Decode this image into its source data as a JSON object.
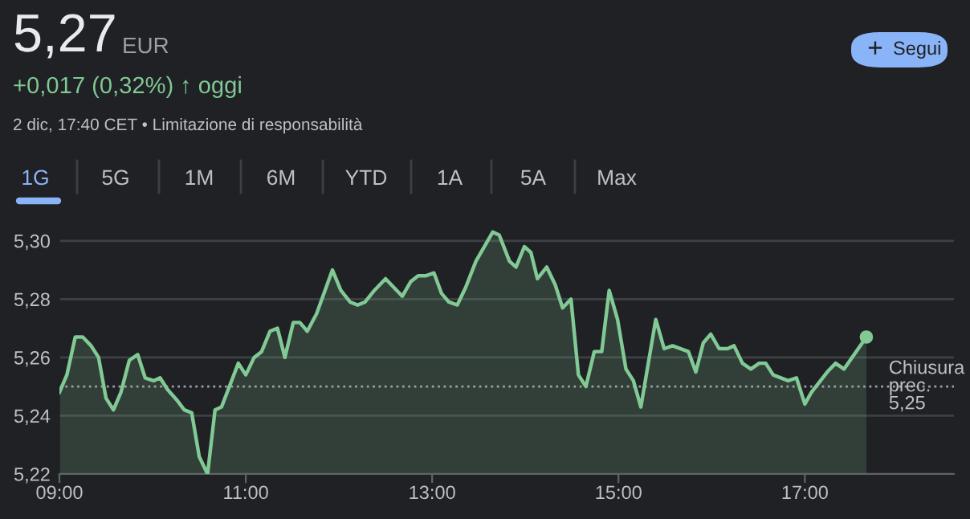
{
  "chart_data": {
    "type": "area",
    "title": "5,27",
    "annotations": [
      "EUR",
      "+0,017 (0,32%)",
      "↑ oggi",
      "2 dic, 17:40 CET • Limitazione di responsabilità",
      "1G",
      "5G",
      "1M",
      "6M",
      "YTD",
      "1A",
      "5A",
      "Max",
      "+",
      "Segui"
    ],
    "series": [
      {
        "color": "#81c995",
        "x": [
          9.0,
          9.08,
          9.17,
          9.25,
          9.34,
          9.42,
          9.5,
          9.58,
          9.66,
          9.75,
          9.84,
          9.92,
          10.01,
          10.08,
          10.16,
          10.27,
          10.34,
          10.42,
          10.5,
          10.59,
          10.67,
          10.74,
          10.92,
          11.0,
          11.09,
          11.17,
          11.26,
          11.34,
          11.42,
          11.51,
          11.58,
          11.66,
          11.76,
          11.93,
          12.02,
          12.12,
          12.2,
          12.28,
          12.38,
          12.5,
          12.68,
          12.77,
          12.85,
          12.93,
          13.02,
          13.1,
          13.18,
          13.27,
          13.36,
          13.47,
          13.65,
          13.72,
          13.83,
          13.9,
          13.99,
          14.06,
          14.13,
          14.23,
          14.32,
          14.4,
          14.49,
          14.57,
          14.65,
          14.74,
          14.82,
          14.9,
          14.99,
          15.08,
          15.16,
          15.24,
          15.4,
          15.49,
          15.58,
          15.75,
          15.83,
          15.91,
          15.99,
          16.08,
          16.17,
          16.24,
          16.33,
          16.42,
          16.51,
          16.58,
          16.66,
          16.82,
          16.91,
          17.0,
          17.07,
          17.24,
          17.33,
          17.42,
          17.66
        ],
        "values": [
          5.248,
          5.254,
          5.267,
          5.267,
          5.264,
          5.26,
          5.246,
          5.242,
          5.248,
          5.259,
          5.261,
          5.253,
          5.252,
          5.253,
          5.249,
          5.245,
          5.242,
          5.241,
          5.226,
          5.22,
          5.242,
          5.243,
          5.258,
          5.254,
          5.26,
          5.262,
          5.269,
          5.27,
          5.26,
          5.272,
          5.272,
          5.269,
          5.275,
          5.29,
          5.283,
          5.279,
          5.278,
          5.279,
          5.283,
          5.287,
          5.281,
          5.286,
          5.288,
          5.288,
          5.289,
          5.282,
          5.279,
          5.278,
          5.284,
          5.293,
          5.303,
          5.302,
          5.293,
          5.291,
          5.298,
          5.296,
          5.287,
          5.291,
          5.285,
          5.277,
          5.28,
          5.254,
          5.25,
          5.262,
          5.262,
          5.283,
          5.273,
          5.256,
          5.252,
          5.243,
          5.273,
          5.263,
          5.264,
          5.262,
          5.255,
          5.265,
          5.268,
          5.263,
          5.263,
          5.264,
          5.258,
          5.256,
          5.258,
          5.258,
          5.254,
          5.252,
          5.253,
          5.244,
          5.248,
          5.255,
          5.258,
          5.256,
          5.267
        ]
      }
    ],
    "xlim": [
      9,
      18.6
    ],
    "ylim": [
      5.22,
      5.306
    ],
    "xticks": [
      {
        "value": 9,
        "label": "09:00"
      },
      {
        "value": 11,
        "label": "11:00"
      },
      {
        "value": 13,
        "label": "13:00"
      },
      {
        "value": 15,
        "label": "15:00"
      },
      {
        "value": 17,
        "label": "17:00"
      }
    ],
    "yticks": [
      {
        "value": 5.22,
        "label": "5,22"
      },
      {
        "value": 5.24,
        "label": "5,24"
      },
      {
        "value": 5.26,
        "label": "5,26"
      },
      {
        "value": 5.28,
        "label": "5,28"
      },
      {
        "value": 5.3,
        "label": "5,30"
      }
    ],
    "ref_lines": [
      {
        "axis": "y",
        "value": 5.25,
        "label": "Chiusura prec. 5,25",
        "color": "#9aa0a6",
        "line_style": "dotted"
      }
    ],
    "grid": "y",
    "legend": false,
    "marker": "none",
    "line_style": "solid"
  }
}
